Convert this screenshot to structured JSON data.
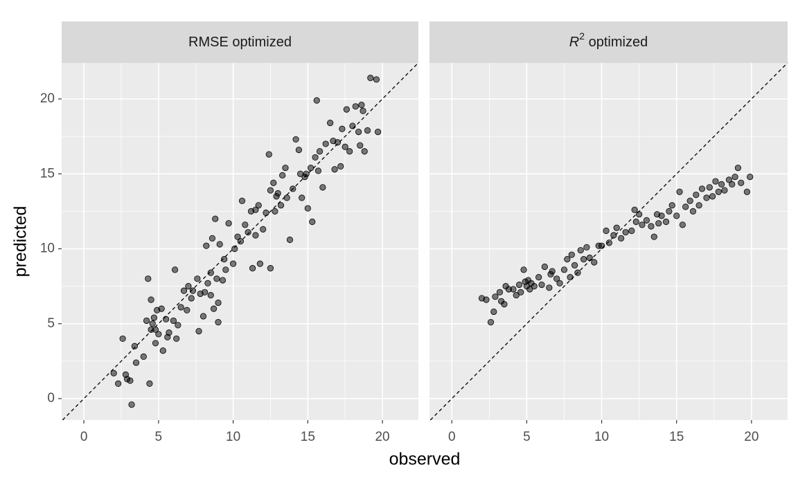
{
  "chart_data": [
    {
      "type": "scatter",
      "title": {
        "text": "RMSE optimized"
      },
      "x_label": "observed",
      "y_label": "predicted",
      "identity_line": true,
      "grid": true,
      "point_color": "#000000",
      "xlim": [
        -1.49,
        22.41
      ],
      "ylim": [
        -1.43,
        22.4
      ],
      "xticks": [
        0,
        5,
        10,
        15,
        20
      ],
      "yticks": [
        0,
        5,
        10,
        15,
        20
      ],
      "x": [
        2.0,
        2.3,
        2.6,
        2.8,
        2.9,
        3.1,
        3.2,
        3.4,
        3.5,
        4.0,
        4.2,
        4.3,
        4.4,
        4.5,
        4.5,
        4.6,
        4.7,
        4.8,
        4.8,
        4.9,
        5.0,
        5.2,
        5.3,
        5.5,
        5.6,
        5.7,
        6.0,
        6.1,
        6.2,
        6.3,
        6.5,
        6.7,
        6.9,
        7.0,
        7.2,
        7.3,
        7.6,
        7.7,
        7.8,
        8.0,
        8.1,
        8.2,
        8.3,
        8.5,
        8.5,
        8.6,
        8.7,
        8.8,
        8.9,
        9.0,
        9.0,
        9.1,
        9.3,
        9.5,
        9.7,
        10.0,
        10.1,
        10.3,
        10.5,
        10.6,
        11.0,
        11.2,
        11.3,
        11.5,
        11.7,
        11.8,
        12.0,
        12.2,
        12.4,
        12.5,
        12.5,
        12.7,
        12.8,
        13.0,
        13.2,
        13.3,
        13.5,
        13.6,
        13.8,
        14.0,
        14.2,
        14.4,
        14.5,
        14.6,
        14.8,
        15.0,
        15.2,
        15.3,
        15.5,
        15.6,
        15.7,
        15.8,
        16.0,
        16.2,
        16.5,
        16.7,
        16.8,
        17.0,
        17.2,
        17.3,
        17.5,
        17.6,
        17.8,
        18.0,
        18.2,
        18.4,
        18.5,
        18.6,
        18.7,
        18.8,
        19.0,
        19.2,
        19.6,
        19.7,
        14.9,
        12.9,
        11.5,
        10.8,
        9.4
      ],
      "y": [
        1.7,
        1.0,
        4.0,
        1.6,
        1.3,
        1.2,
        -0.4,
        3.5,
        2.4,
        2.8,
        5.2,
        8.0,
        1.0,
        6.6,
        4.6,
        5.0,
        5.4,
        3.7,
        4.6,
        5.9,
        4.3,
        6.0,
        3.2,
        5.3,
        4.1,
        4.4,
        5.2,
        8.6,
        4.0,
        4.9,
        6.1,
        7.2,
        5.9,
        7.5,
        6.7,
        7.2,
        8.0,
        4.5,
        7.0,
        5.5,
        7.1,
        10.2,
        7.7,
        6.9,
        8.4,
        10.7,
        6.0,
        12.0,
        8.0,
        5.1,
        6.4,
        10.3,
        7.9,
        8.6,
        11.7,
        9.0,
        10.0,
        10.8,
        10.5,
        13.2,
        11.1,
        12.5,
        8.7,
        10.9,
        12.9,
        9.0,
        11.3,
        12.4,
        16.3,
        8.7,
        13.9,
        14.4,
        12.5,
        13.7,
        12.9,
        14.9,
        15.4,
        13.4,
        10.6,
        14.0,
        17.3,
        16.6,
        15.0,
        13.4,
        14.8,
        12.7,
        15.4,
        11.8,
        16.1,
        19.9,
        15.2,
        16.5,
        14.1,
        17.0,
        18.4,
        17.2,
        15.3,
        17.1,
        15.5,
        18.0,
        16.8,
        19.3,
        16.5,
        18.2,
        19.5,
        17.8,
        16.9,
        19.6,
        19.2,
        16.5,
        17.9,
        21.4,
        21.3,
        17.8,
        15.0,
        13.5,
        12.6,
        11.6,
        9.3
      ]
    },
    {
      "type": "scatter",
      "title": {
        "text": "R",
        "superscript": "2",
        "rest": " optimized"
      },
      "identity_line": true,
      "grid": true,
      "point_color": "#000000",
      "xlim": [
        -1.49,
        22.41
      ],
      "ylim": [
        -1.43,
        22.4
      ],
      "xticks": [
        0,
        5,
        10,
        15,
        20
      ],
      "yticks": [
        0,
        5,
        10,
        15,
        20
      ],
      "x": [
        2.0,
        2.3,
        2.6,
        2.8,
        2.9,
        3.2,
        3.3,
        3.5,
        3.6,
        3.8,
        4.1,
        4.3,
        4.5,
        4.6,
        4.8,
        4.9,
        5.0,
        5.1,
        5.2,
        5.3,
        5.5,
        5.8,
        6.0,
        6.2,
        6.5,
        6.7,
        7.0,
        7.2,
        7.5,
        7.7,
        7.9,
        8.0,
        8.2,
        8.4,
        8.6,
        8.8,
        9.0,
        9.2,
        9.5,
        10.0,
        10.3,
        10.5,
        10.8,
        11.0,
        11.3,
        11.6,
        12.0,
        12.3,
        12.5,
        12.7,
        13.0,
        13.3,
        13.5,
        13.8,
        14.0,
        14.3,
        14.5,
        14.7,
        15.0,
        15.2,
        15.4,
        15.6,
        15.9,
        16.1,
        16.3,
        16.5,
        16.7,
        17.0,
        17.2,
        17.4,
        17.6,
        17.8,
        18.0,
        18.2,
        18.5,
        18.7,
        18.9,
        19.1,
        19.3,
        19.7,
        19.9,
        12.2,
        13.7,
        9.8,
        6.6
      ],
      "y": [
        6.7,
        6.6,
        5.1,
        5.8,
        6.8,
        7.1,
        6.5,
        6.3,
        7.5,
        7.3,
        7.3,
        6.9,
        7.6,
        7.1,
        8.6,
        7.8,
        7.5,
        7.9,
        7.3,
        7.7,
        7.5,
        8.1,
        7.6,
        8.8,
        7.4,
        8.5,
        8.0,
        7.7,
        8.6,
        9.3,
        8.1,
        9.6,
        8.9,
        8.4,
        9.9,
        9.3,
        10.1,
        9.4,
        9.1,
        10.2,
        11.2,
        10.4,
        10.9,
        11.4,
        10.7,
        11.1,
        11.2,
        11.8,
        12.3,
        11.6,
        11.9,
        11.5,
        10.8,
        11.7,
        12.2,
        11.8,
        12.5,
        12.9,
        12.2,
        13.8,
        11.6,
        12.8,
        13.2,
        12.5,
        13.6,
        12.9,
        14.0,
        13.4,
        14.1,
        13.5,
        14.5,
        13.8,
        14.3,
        13.9,
        14.6,
        14.3,
        14.8,
        15.4,
        14.4,
        13.8,
        14.8,
        12.6,
        12.3,
        10.2,
        8.3
      ]
    }
  ]
}
